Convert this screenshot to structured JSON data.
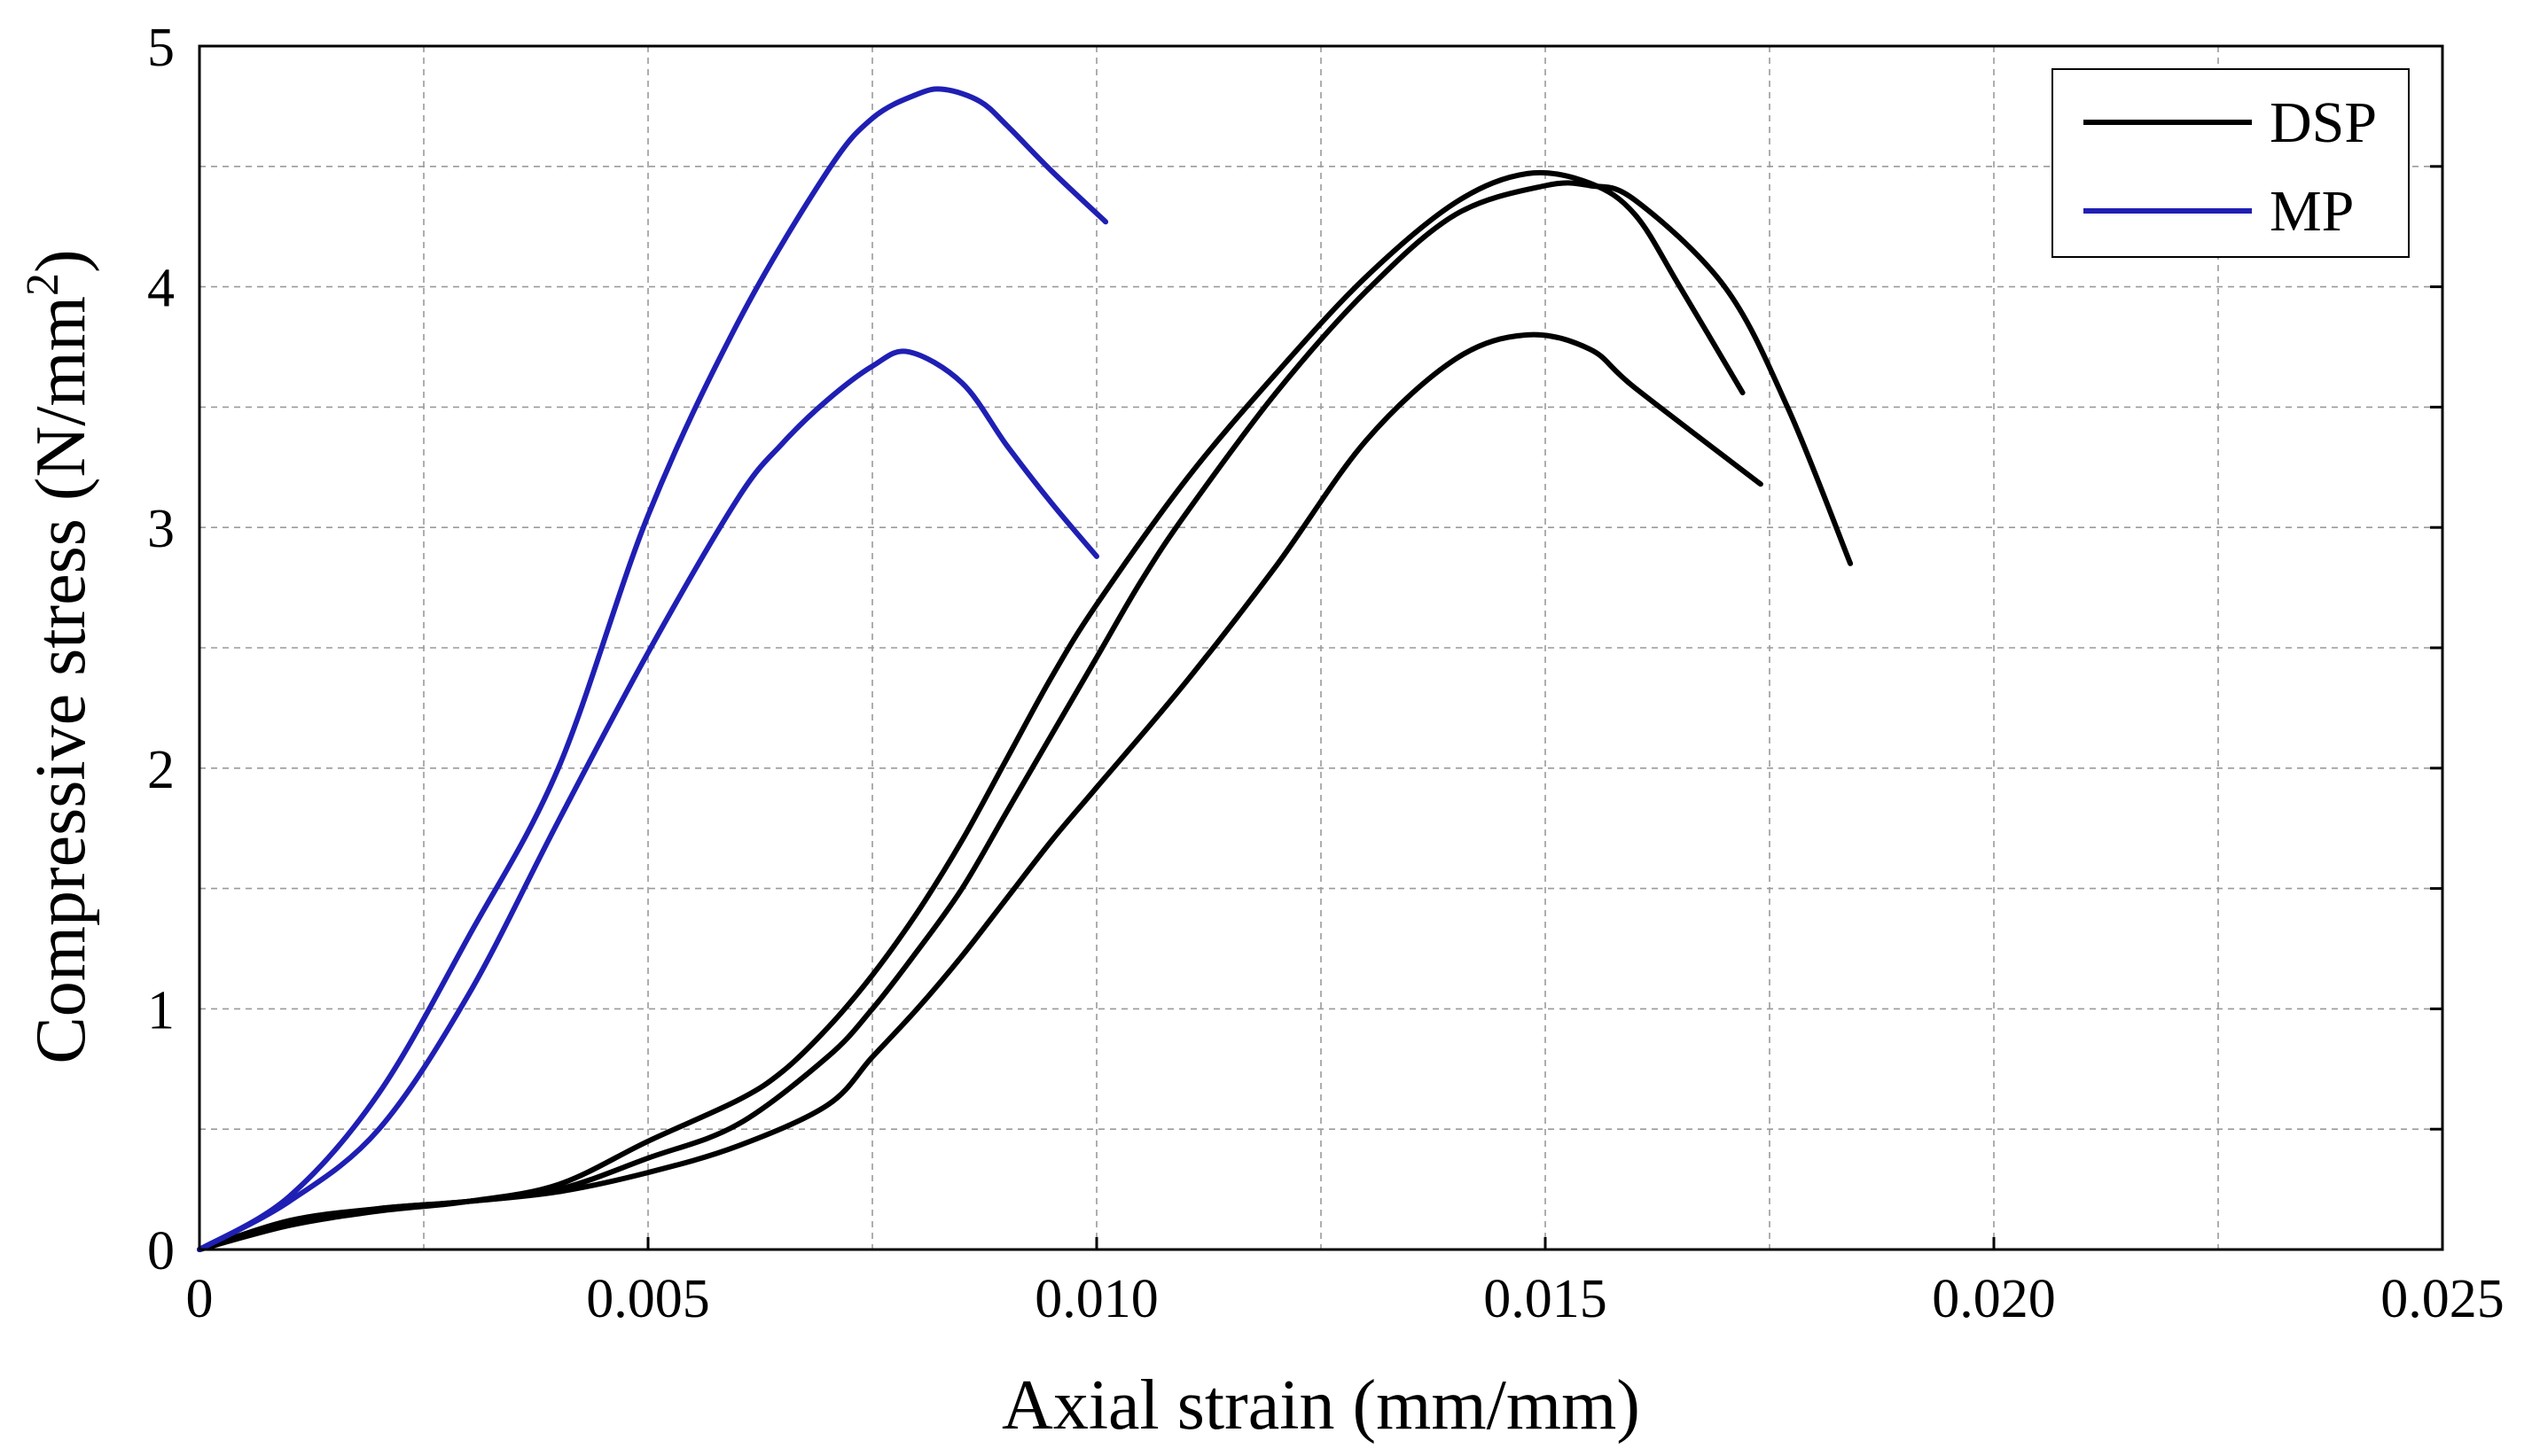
{
  "chart_data": {
    "type": "line",
    "title": "",
    "xlabel": "Axial strain (mm/mm)",
    "ylabel": {
      "prefix": "Compressive stress (N/mm",
      "superscript": "2",
      "suffix": ")"
    },
    "xlim": [
      0,
      0.025
    ],
    "ylim": [
      0,
      5
    ],
    "x_ticks": [
      0,
      0.005,
      0.01,
      0.015,
      0.02,
      0.025
    ],
    "x_tick_labels": [
      "0",
      "0.005",
      "0.010",
      "0.015",
      "0.020",
      "0.025"
    ],
    "y_ticks": [
      0,
      1,
      2,
      3,
      4,
      5
    ],
    "y_tick_labels": [
      "0",
      "1",
      "2",
      "3",
      "4",
      "5"
    ],
    "grid": true,
    "legend_position": "top-right",
    "legend": [
      {
        "label": "DSP",
        "color": "#000000"
      },
      {
        "label": "MP",
        "color": "#1f1fb4"
      }
    ],
    "series": [
      {
        "name": "DSP",
        "color": "#000000",
        "x": [
          0,
          0.001,
          0.002,
          0.003,
          0.004,
          0.005,
          0.006,
          0.0065,
          0.007,
          0.0075,
          0.008,
          0.0085,
          0.009,
          0.0095,
          0.01,
          0.011,
          0.012,
          0.013,
          0.014,
          0.0148,
          0.0155,
          0.016,
          0.0165,
          0.0172
        ],
        "y": [
          0,
          0.1,
          0.16,
          0.2,
          0.27,
          0.45,
          0.62,
          0.74,
          0.92,
          1.14,
          1.4,
          1.7,
          2.04,
          2.38,
          2.68,
          3.2,
          3.64,
          4.04,
          4.35,
          4.47,
          4.43,
          4.3,
          4.0,
          3.56
        ]
      },
      {
        "name": "DSP",
        "color": "#000000",
        "x": [
          0,
          0.001,
          0.002,
          0.003,
          0.004,
          0.005,
          0.006,
          0.007,
          0.0075,
          0.008,
          0.0085,
          0.009,
          0.0095,
          0.01,
          0.0105,
          0.011,
          0.012,
          0.013,
          0.014,
          0.015,
          0.0155,
          0.016,
          0.017,
          0.0177,
          0.0184
        ],
        "y": [
          0,
          0.11,
          0.17,
          0.2,
          0.25,
          0.38,
          0.52,
          0.8,
          1.0,
          1.24,
          1.5,
          1.82,
          2.14,
          2.46,
          2.78,
          3.06,
          3.56,
          3.98,
          4.3,
          4.42,
          4.42,
          4.36,
          4.0,
          3.5,
          2.85
        ]
      },
      {
        "name": "DSP",
        "color": "#000000",
        "x": [
          0,
          0.001,
          0.002,
          0.003,
          0.004,
          0.005,
          0.006,
          0.007,
          0.0075,
          0.008,
          0.0085,
          0.009,
          0.0095,
          0.01,
          0.011,
          0.012,
          0.013,
          0.014,
          0.0148,
          0.0155,
          0.016,
          0.0174
        ],
        "y": [
          0,
          0.12,
          0.17,
          0.2,
          0.24,
          0.32,
          0.43,
          0.6,
          0.8,
          1.0,
          1.22,
          1.46,
          1.7,
          1.92,
          2.36,
          2.84,
          3.36,
          3.7,
          3.8,
          3.74,
          3.58,
          3.18
        ]
      },
      {
        "name": "MP",
        "color": "#1f1fb4",
        "x": [
          0,
          0.001,
          0.002,
          0.003,
          0.004,
          0.005,
          0.006,
          0.007,
          0.0075,
          0.008,
          0.0083,
          0.0087,
          0.009,
          0.0095,
          0.0101
        ],
        "y": [
          0,
          0.22,
          0.65,
          1.3,
          2.0,
          3.05,
          3.85,
          4.48,
          4.7,
          4.8,
          4.82,
          4.77,
          4.67,
          4.48,
          4.27
        ]
      },
      {
        "name": "MP",
        "color": "#1f1fb4",
        "x": [
          0,
          0.001,
          0.002,
          0.003,
          0.004,
          0.005,
          0.006,
          0.0065,
          0.007,
          0.0075,
          0.0079,
          0.0085,
          0.009,
          0.0095,
          0.01
        ],
        "y": [
          0,
          0.2,
          0.5,
          1.06,
          1.78,
          2.48,
          3.12,
          3.35,
          3.53,
          3.67,
          3.73,
          3.6,
          3.34,
          3.1,
          2.88
        ]
      }
    ]
  }
}
